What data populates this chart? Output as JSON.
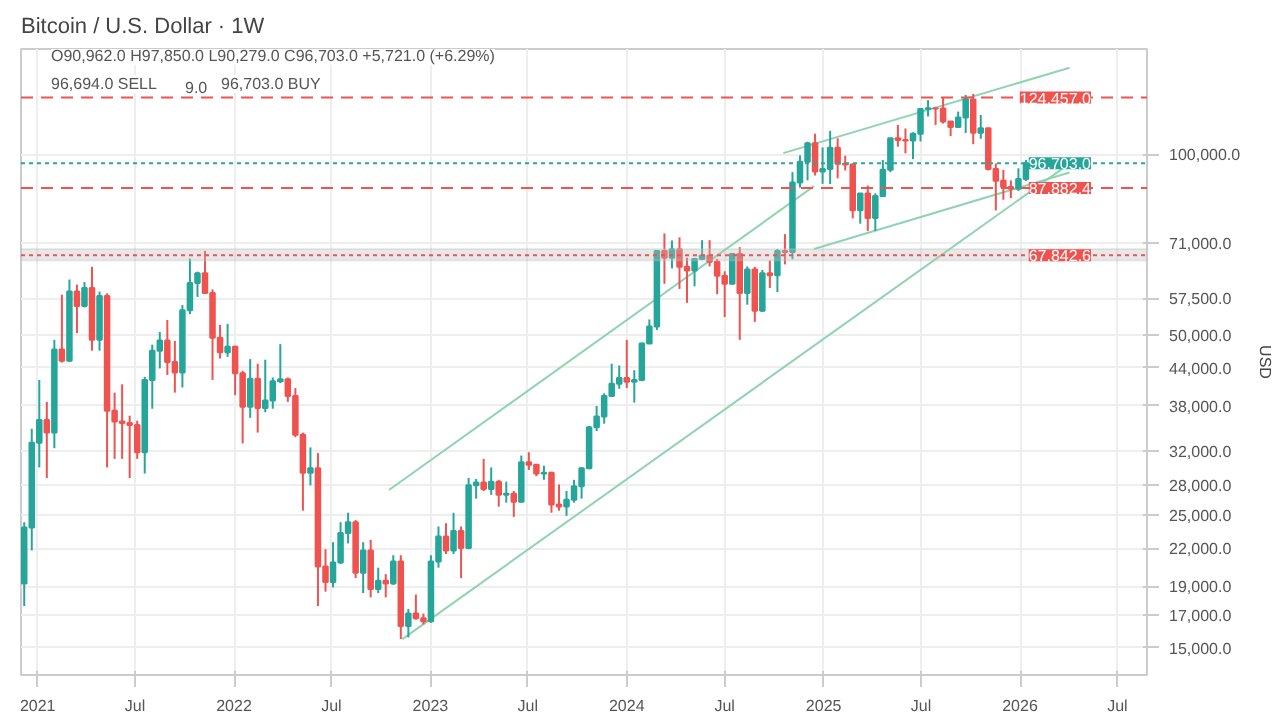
{
  "chart_data": {
    "type": "candlestick",
    "title": "Bitcoin / U.S. Dollar · 1W",
    "ylabel": "USD",
    "annotations": [
      "O90,962.0 H97,850.0 L90,279.0 C96,703.0 +5,721.0 (+6.29%)",
      "96,694.0 SELL",
      "9.0",
      "96,703.0 BUY"
    ],
    "x": [
      "2020-12-07",
      "2020-12-21",
      "2021-01-04",
      "2021-01-18",
      "2021-02-01",
      "2021-02-15",
      "2021-03-01",
      "2021-03-15",
      "2021-03-29",
      "2021-04-12",
      "2021-04-26",
      "2021-05-10",
      "2021-05-24",
      "2021-06-07",
      "2021-06-21",
      "2021-07-05",
      "2021-07-19",
      "2021-08-02",
      "2021-08-16",
      "2021-08-30",
      "2021-09-13",
      "2021-09-27",
      "2021-10-11",
      "2021-10-25",
      "2021-11-08",
      "2021-11-22",
      "2021-12-06",
      "2021-12-20",
      "2022-01-03",
      "2022-01-17",
      "2022-01-31",
      "2022-02-14",
      "2022-02-28",
      "2022-03-14",
      "2022-03-28",
      "2022-04-11",
      "2022-04-25",
      "2022-05-09",
      "2022-05-23",
      "2022-06-06",
      "2022-06-20",
      "2022-07-04",
      "2022-07-18",
      "2022-08-01",
      "2022-08-15",
      "2022-08-29",
      "2022-09-12",
      "2022-09-26",
      "2022-10-10",
      "2022-10-24",
      "2022-11-07",
      "2022-11-21",
      "2022-12-05",
      "2022-12-19",
      "2023-01-02",
      "2023-01-16",
      "2023-01-30",
      "2023-02-13",
      "2023-02-27",
      "2023-03-13",
      "2023-03-27",
      "2023-04-10",
      "2023-04-24",
      "2023-05-08",
      "2023-05-22",
      "2023-06-05",
      "2023-06-19",
      "2023-07-03",
      "2023-07-17",
      "2023-07-31",
      "2023-08-14",
      "2023-08-28",
      "2023-09-11",
      "2023-09-25",
      "2023-10-09",
      "2023-10-23",
      "2023-11-06",
      "2023-11-20",
      "2023-12-04",
      "2023-12-18",
      "2024-01-01",
      "2024-01-15",
      "2024-01-29",
      "2024-02-12",
      "2024-02-26",
      "2024-03-11",
      "2024-03-25",
      "2024-04-08",
      "2024-04-22",
      "2024-05-06",
      "2024-05-20",
      "2024-06-03",
      "2024-06-17",
      "2024-07-01",
      "2024-07-15",
      "2024-07-29",
      "2024-08-12",
      "2024-08-26",
      "2024-09-09",
      "2024-09-23",
      "2024-10-07",
      "2024-10-21",
      "2024-11-04",
      "2024-11-18",
      "2024-12-02",
      "2024-12-16",
      "2024-12-30",
      "2025-01-13",
      "2025-01-27",
      "2025-02-10",
      "2025-02-24",
      "2025-03-10",
      "2025-03-24",
      "2025-04-07",
      "2025-04-21",
      "2025-05-05",
      "2025-05-19",
      "2025-06-02",
      "2025-06-16",
      "2025-06-30",
      "2025-07-14",
      "2025-07-28",
      "2025-08-11",
      "2025-08-25",
      "2025-09-08",
      "2025-09-22",
      "2025-10-06",
      "2025-10-20",
      "2025-11-03",
      "2025-11-17",
      "2025-12-01",
      "2025-12-15",
      "2025-12-29",
      "2026-01-12"
    ],
    "ohlc": [
      [
        19200,
        24300,
        17600,
        23800
      ],
      [
        23800,
        34800,
        21800,
        33000
      ],
      [
        33000,
        42000,
        30000,
        36000
      ],
      [
        36000,
        38600,
        28800,
        34300
      ],
      [
        34300,
        49000,
        32300,
        47200
      ],
      [
        47200,
        58300,
        44900,
        45200
      ],
      [
        45200,
        61800,
        45000,
        59000
      ],
      [
        59000,
        60600,
        50300,
        55800
      ],
      [
        55800,
        61200,
        55500,
        59800
      ],
      [
        59800,
        64900,
        47000,
        49000
      ],
      [
        49000,
        59000,
        47000,
        58000
      ],
      [
        58000,
        58600,
        30000,
        37300
      ],
      [
        37300,
        40000,
        31000,
        35800
      ],
      [
        35800,
        41300,
        31000,
        35600
      ],
      [
        35600,
        36600,
        28800,
        35300
      ],
      [
        35300,
        35900,
        31000,
        31800
      ],
      [
        31800,
        42500,
        29300,
        42000
      ],
      [
        42000,
        48100,
        37600,
        47000
      ],
      [
        47000,
        50500,
        43900,
        48900
      ],
      [
        48900,
        52900,
        42800,
        45000
      ],
      [
        45000,
        48800,
        40000,
        43200
      ],
      [
        43200,
        56000,
        40800,
        54900
      ],
      [
        54900,
        67000,
        54100,
        61000
      ],
      [
        61000,
        63700,
        57800,
        63300
      ],
      [
        63300,
        69000,
        58500,
        58700
      ],
      [
        58700,
        59500,
        42000,
        49400
      ],
      [
        49400,
        51900,
        45600,
        46700
      ],
      [
        46700,
        52100,
        45900,
        47700
      ],
      [
        47700,
        47900,
        39600,
        43100
      ],
      [
        43100,
        43500,
        32900,
        37900
      ],
      [
        37900,
        45500,
        36300,
        42200
      ],
      [
        42200,
        44700,
        34300,
        37700
      ],
      [
        37700,
        45400,
        37100,
        38800
      ],
      [
        38800,
        42400,
        37600,
        41800
      ],
      [
        41800,
        48200,
        41500,
        42100
      ],
      [
        42100,
        42400,
        38600,
        39500
      ],
      [
        39500,
        40700,
        33700,
        34000
      ],
      [
        34000,
        34300,
        25400,
        29400
      ],
      [
        29400,
        32400,
        28000,
        29900
      ],
      [
        29900,
        31700,
        17600,
        20500
      ],
      [
        20500,
        21900,
        18600,
        19300
      ],
      [
        19300,
        22500,
        18900,
        20800
      ],
      [
        20800,
        24300,
        20700,
        23300
      ],
      [
        23300,
        25200,
        22400,
        24300
      ],
      [
        24300,
        24500,
        19600,
        20000
      ],
      [
        20000,
        22500,
        18500,
        21800
      ],
      [
        21800,
        22700,
        18200,
        18800
      ],
      [
        18800,
        20400,
        18500,
        19400
      ],
      [
        19400,
        19900,
        18200,
        19200
      ],
      [
        19200,
        21400,
        19100,
        20900
      ],
      [
        20900,
        21400,
        15500,
        16300
      ],
      [
        16300,
        17400,
        15600,
        17100
      ],
      [
        17100,
        18400,
        16700,
        16800
      ],
      [
        16800,
        17100,
        16400,
        16600
      ],
      [
        16600,
        21400,
        16500,
        20900
      ],
      [
        20900,
        23900,
        20400,
        23000
      ],
      [
        23000,
        24200,
        21500,
        21800
      ],
      [
        21800,
        25200,
        21500,
        23500
      ],
      [
        23500,
        23900,
        19600,
        22000
      ],
      [
        22000,
        28800,
        21900,
        28000
      ],
      [
        28000,
        28700,
        26600,
        28300
      ],
      [
        28300,
        31000,
        27400,
        27600
      ],
      [
        27600,
        30000,
        27000,
        28400
      ],
      [
        28400,
        28600,
        25800,
        27000
      ],
      [
        27000,
        28400,
        26200,
        27100
      ],
      [
        27100,
        27400,
        24800,
        26300
      ],
      [
        26300,
        31400,
        26200,
        30600
      ],
      [
        30600,
        31800,
        29700,
        30300
      ],
      [
        30300,
        30400,
        29000,
        29300
      ],
      [
        29300,
        30200,
        28600,
        29400
      ],
      [
        29400,
        29500,
        25200,
        26000
      ],
      [
        26000,
        28100,
        25400,
        25800
      ],
      [
        25800,
        27400,
        24900,
        26500
      ],
      [
        26500,
        28600,
        26200,
        27900
      ],
      [
        27900,
        30000,
        26600,
        29900
      ],
      [
        29900,
        35200,
        29800,
        35000
      ],
      [
        35000,
        38000,
        34500,
        36500
      ],
      [
        36500,
        39900,
        35500,
        39500
      ],
      [
        39500,
        44700,
        39400,
        41400
      ],
      [
        41400,
        44400,
        40600,
        42300
      ],
      [
        42300,
        49000,
        40700,
        41700
      ],
      [
        41700,
        43600,
        38500,
        42000
      ],
      [
        42000,
        48500,
        41900,
        48300
      ],
      [
        48300,
        53000,
        48200,
        51600
      ],
      [
        51600,
        69200,
        50900,
        69000
      ],
      [
        69000,
        73800,
        60800,
        67200
      ],
      [
        67200,
        71800,
        64500,
        69400
      ],
      [
        69400,
        72700,
        59600,
        64900
      ],
      [
        64900,
        67200,
        56500,
        64000
      ],
      [
        64000,
        67000,
        60200,
        66900
      ],
      [
        66900,
        71900,
        66600,
        67800
      ],
      [
        67800,
        71900,
        65000,
        66200
      ],
      [
        66200,
        66900,
        58400,
        62700
      ],
      [
        62700,
        63800,
        53500,
        60800
      ],
      [
        60800,
        68400,
        60600,
        68200
      ],
      [
        68200,
        70000,
        49000,
        58700
      ],
      [
        58700,
        65000,
        56100,
        64200
      ],
      [
        64200,
        64900,
        52500,
        54800
      ],
      [
        54800,
        64100,
        54600,
        63300
      ],
      [
        63300,
        66500,
        59800,
        62800
      ],
      [
        62800,
        69500,
        58900,
        69000
      ],
      [
        69000,
        73600,
        65500,
        68700
      ],
      [
        68700,
        93400,
        66800,
        89800
      ],
      [
        89800,
        99600,
        88000,
        97200
      ],
      [
        97200,
        105000,
        90500,
        104400
      ],
      [
        104400,
        108300,
        92200,
        93600
      ],
      [
        93600,
        102700,
        89300,
        94500
      ],
      [
        94500,
        109500,
        89200,
        102600
      ],
      [
        102600,
        106400,
        91200,
        96500
      ],
      [
        96500,
        99500,
        94000,
        96200
      ],
      [
        96200,
        96500,
        78200,
        80700
      ],
      [
        80700,
        86100,
        76600,
        86000
      ],
      [
        86000,
        88700,
        74500,
        78300
      ],
      [
        78300,
        86100,
        74500,
        85200
      ],
      [
        85200,
        97900,
        85100,
        94300
      ],
      [
        94300,
        106500,
        93400,
        106400
      ],
      [
        106400,
        112000,
        103000,
        105700
      ],
      [
        105700,
        110500,
        100400,
        105500
      ],
      [
        105500,
        108900,
        98200,
        108300
      ],
      [
        108300,
        119500,
        105100,
        119100
      ],
      [
        119100,
        123200,
        115700,
        119400
      ],
      [
        119400,
        119800,
        112000,
        119300
      ],
      [
        119300,
        124500,
        112600,
        113500
      ],
      [
        113500,
        113600,
        107300,
        111100
      ],
      [
        111100,
        117900,
        110800,
        115300
      ],
      [
        115300,
        125700,
        108600,
        123500
      ],
      [
        123500,
        126200,
        104000,
        108700
      ],
      [
        108700,
        116400,
        106200,
        110600
      ],
      [
        110600,
        110800,
        94000,
        94500
      ],
      [
        94500,
        96600,
        80600,
        90400
      ],
      [
        90400,
        94200,
        84000,
        88200
      ],
      [
        88200,
        90500,
        84500,
        87600
      ],
      [
        87600,
        94800,
        86900,
        90962
      ],
      [
        90962,
        97850,
        90279,
        96703
      ]
    ],
    "colors": [
      "#26a69a",
      "#26a69a",
      "#26a69a",
      "#ef5350",
      "#26a69a",
      "#ef5350",
      "#26a69a",
      "#ef5350",
      "#26a69a",
      "#ef5350",
      "#26a69a",
      "#ef5350",
      "#ef5350",
      "#ef5350",
      "#ef5350",
      "#ef5350",
      "#26a69a",
      "#26a69a",
      "#26a69a",
      "#ef5350",
      "#ef5350",
      "#26a69a",
      "#26a69a",
      "#26a69a",
      "#ef5350",
      "#ef5350",
      "#ef5350",
      "#26a69a",
      "#ef5350",
      "#ef5350",
      "#26a69a",
      "#ef5350",
      "#26a69a",
      "#26a69a",
      "#26a69a",
      "#ef5350",
      "#ef5350",
      "#ef5350",
      "#26a69a",
      "#ef5350",
      "#ef5350",
      "#26a69a",
      "#26a69a",
      "#26a69a",
      "#ef5350",
      "#26a69a",
      "#ef5350",
      "#26a69a",
      "#ef5350",
      "#26a69a",
      "#ef5350",
      "#26a69a",
      "#ef5350",
      "#ef5350",
      "#26a69a",
      "#26a69a",
      "#ef5350",
      "#26a69a",
      "#ef5350",
      "#26a69a",
      "#26a69a",
      "#ef5350",
      "#26a69a",
      "#ef5350",
      "#26a69a",
      "#ef5350",
      "#26a69a",
      "#ef5350",
      "#ef5350",
      "#26a69a",
      "#ef5350",
      "#ef5350",
      "#26a69a",
      "#26a69a",
      "#26a69a",
      "#26a69a",
      "#26a69a",
      "#26a69a",
      "#26a69a",
      "#26a69a",
      "#ef5350",
      "#26a69a",
      "#26a69a",
      "#26a69a",
      "#26a69a",
      "#ef5350",
      "#26a69a",
      "#ef5350",
      "#ef5350",
      "#26a69a",
      "#26a69a",
      "#ef5350",
      "#ef5350",
      "#ef5350",
      "#26a69a",
      "#ef5350",
      "#26a69a",
      "#ef5350",
      "#26a69a",
      "#ef5350",
      "#26a69a",
      "#ef5350",
      "#26a69a",
      "#26a69a",
      "#26a69a",
      "#ef5350",
      "#26a69a",
      "#26a69a",
      "#ef5350",
      "#ef5350",
      "#ef5350",
      "#26a69a",
      "#ef5350",
      "#26a69a",
      "#26a69a",
      "#26a69a",
      "#ef5350",
      "#ef5350",
      "#26a69a",
      "#26a69a",
      "#26a69a",
      "#ef5350",
      "#ef5350",
      "#ef5350",
      "#26a69a",
      "#26a69a",
      "#ef5350",
      "#26a69a",
      "#ef5350",
      "#ef5350",
      "#ef5350",
      "#ef5350",
      "#26a69a",
      "#26a69a"
    ],
    "series": [
      {
        "type": "line",
        "color": "#8fd4b0",
        "x": [
          "2022-11-10",
          "2026-04-03"
        ],
        "values": [
          15500,
          96500
        ]
      },
      {
        "type": "line",
        "color": "#8fd4b0",
        "x": [
          "2022-10-16",
          "2024-12-14"
        ],
        "values": [
          27500,
          88500
        ]
      },
      {
        "type": "line",
        "color": "#8fd4b0",
        "x": [
          "2024-10-18",
          "2026-04-03"
        ],
        "values": [
          100500,
          139600
        ]
      },
      {
        "type": "line",
        "color": "#8fd4b0",
        "x": [
          "2024-12-14",
          "2026-04-03"
        ],
        "values": [
          69500,
          93300
        ]
      }
    ],
    "ref_lines": [
      {
        "axis": "y",
        "value": 124457,
        "label": "124,457.0",
        "color": "#ef5350",
        "line_style": "dashed"
      },
      {
        "axis": "y",
        "value": 96703,
        "label": "96,703.0",
        "color": "#26a69a",
        "line_style": "dotted"
      },
      {
        "axis": "y",
        "value": 87882.4,
        "label": "87,882.4",
        "color": "#ef5350",
        "line_style": "dashed"
      },
      {
        "axis": "y",
        "value": 67842.6,
        "label": "67,842.6",
        "color": "#ef5350",
        "line_style": "dotted"
      }
    ],
    "bands": [
      {
        "axis": "y",
        "from": 66500,
        "to": 69500,
        "color": "#bdbdbd"
      }
    ],
    "xlim": [
      "2020-12-01",
      "2026-08-25"
    ],
    "xticks": [
      {
        "value": "2021-01-01",
        "label": "2021"
      },
      {
        "value": "2021-07-01",
        "label": "Jul"
      },
      {
        "value": "2022-01-01",
        "label": "2022"
      },
      {
        "value": "2022-07-01",
        "label": "Jul"
      },
      {
        "value": "2023-01-01",
        "label": "2023"
      },
      {
        "value": "2023-07-01",
        "label": "Jul"
      },
      {
        "value": "2024-01-01",
        "label": "2024"
      },
      {
        "value": "2024-07-01",
        "label": "Jul"
      },
      {
        "value": "2025-01-01",
        "label": "2025"
      },
      {
        "value": "2025-07-01",
        "label": "Jul"
      },
      {
        "value": "2026-01-01",
        "label": "2026"
      },
      {
        "value": "2026-07-01",
        "label": "Jul"
      }
    ],
    "ylim": [
      13500,
      150000
    ],
    "yticks": [
      {
        "value": 15000,
        "label": "15,000.0"
      },
      {
        "value": 17000,
        "label": "17,000.0"
      },
      {
        "value": 19000,
        "label": "19,000.0"
      },
      {
        "value": 22000,
        "label": "22,000.0"
      },
      {
        "value": 25000,
        "label": "25,000.0"
      },
      {
        "value": 28000,
        "label": "28,000.0"
      },
      {
        "value": 32000,
        "label": "32,000.0"
      },
      {
        "value": 38000,
        "label": "38,000.0"
      },
      {
        "value": 44000,
        "label": "44,000.0"
      },
      {
        "value": 50000,
        "label": "50,000.0"
      },
      {
        "value": 57500,
        "label": "57,500.0"
      },
      {
        "value": 71000,
        "label": "71,000.0"
      },
      {
        "value": 100000,
        "label": "100,000.0"
      }
    ],
    "log": true,
    "grid": true
  }
}
